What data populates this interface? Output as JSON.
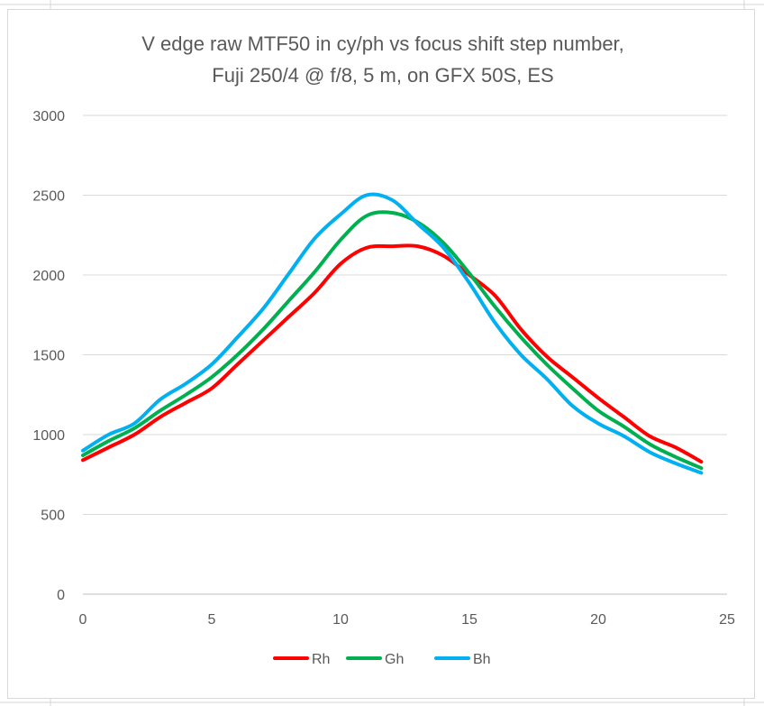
{
  "chart_data": {
    "type": "line",
    "title_lines": [
      "V edge raw MTF50 in cy/ph vs focus shift step number,",
      "Fuji 250/4 @ f/8, 5 m, on GFX 50S, ES"
    ],
    "xlim": [
      0,
      25
    ],
    "ylim": [
      0,
      3000
    ],
    "x_ticks": [
      "0",
      "5",
      "10",
      "15",
      "20",
      "25"
    ],
    "y_ticks": [
      "0",
      "500",
      "1000",
      "1500",
      "2000",
      "2500",
      "3000"
    ],
    "grid": "horizontal",
    "legend_position": "bottom",
    "x": [
      0,
      1,
      2,
      3,
      4,
      5,
      6,
      7,
      8,
      9,
      10,
      11,
      12,
      13,
      14,
      15,
      16,
      17,
      18,
      19,
      20,
      21,
      22,
      23,
      24
    ],
    "series": [
      {
        "name": "Rh",
        "color": "#ff0000",
        "values": [
          840,
          920,
          1000,
          1110,
          1200,
          1290,
          1440,
          1590,
          1740,
          1890,
          2070,
          2170,
          2180,
          2180,
          2120,
          2000,
          1870,
          1660,
          1490,
          1360,
          1230,
          1110,
          990,
          920,
          830
        ]
      },
      {
        "name": "Gh",
        "color": "#00b050",
        "values": [
          870,
          960,
          1040,
          1150,
          1250,
          1360,
          1500,
          1660,
          1840,
          2020,
          2220,
          2370,
          2390,
          2330,
          2200,
          2010,
          1800,
          1610,
          1440,
          1290,
          1150,
          1050,
          940,
          860,
          790
        ]
      },
      {
        "name": "Bh",
        "color": "#00b0f0",
        "values": [
          900,
          1000,
          1070,
          1220,
          1320,
          1440,
          1610,
          1790,
          2010,
          2230,
          2380,
          2500,
          2470,
          2320,
          2170,
          1950,
          1700,
          1500,
          1350,
          1180,
          1070,
          990,
          890,
          820,
          760
        ]
      }
    ]
  }
}
